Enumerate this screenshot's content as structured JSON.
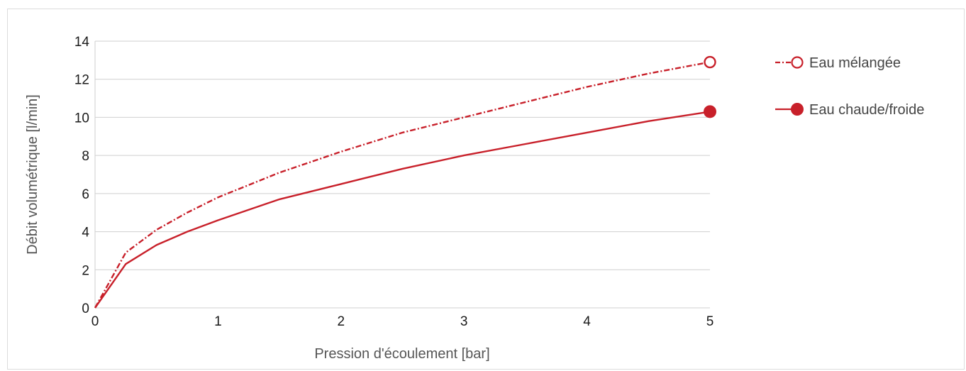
{
  "chart_data": {
    "type": "line",
    "xlabel": "Pression d'écoulement [bar]",
    "ylabel": "Débit volumétrique [l/min]",
    "xlim": [
      0,
      5
    ],
    "ylim": [
      0,
      14
    ],
    "x_ticks": [
      0,
      1,
      2,
      3,
      4,
      5
    ],
    "y_ticks": [
      0,
      2,
      4,
      6,
      8,
      10,
      12,
      14
    ],
    "grid": "horizontal",
    "legend_position": "right",
    "color": "#c8202a",
    "series": [
      {
        "name": "Eau mélangée",
        "style": "dash-dot",
        "marker": "open-circle",
        "x": [
          0,
          0.25,
          0.5,
          0.75,
          1,
          1.5,
          2,
          2.5,
          3,
          3.5,
          4,
          4.5,
          5
        ],
        "values": [
          0,
          2.9,
          4.1,
          5.0,
          5.8,
          7.1,
          8.2,
          9.2,
          10.0,
          10.8,
          11.6,
          12.3,
          12.9
        ]
      },
      {
        "name": "Eau chaude/froide",
        "style": "solid",
        "marker": "filled-circle",
        "x": [
          0,
          0.25,
          0.5,
          0.75,
          1,
          1.5,
          2,
          2.5,
          3,
          3.5,
          4,
          4.5,
          5
        ],
        "values": [
          0,
          2.3,
          3.3,
          4.0,
          4.6,
          5.7,
          6.5,
          7.3,
          8.0,
          8.6,
          9.2,
          9.8,
          10.3
        ]
      }
    ]
  }
}
